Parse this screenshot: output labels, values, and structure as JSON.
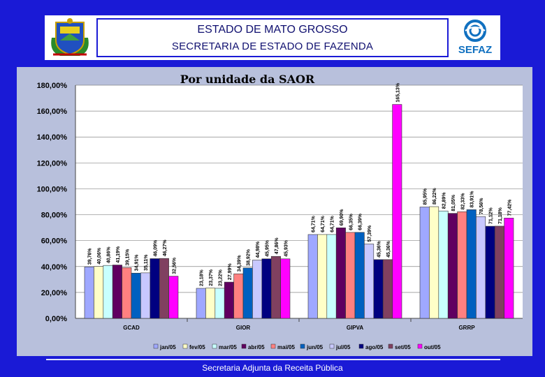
{
  "header": {
    "title_line1": "ESTADO DE MATO GROSSO",
    "title_line2": "SECRETARIA DE ESTADO DE FAZENDA",
    "logo_text": "SEFAZ"
  },
  "footer": {
    "text": "Secretaria Adjunta da Receita Pública"
  },
  "colors": {
    "background": "#1a1ad6",
    "plot_bg": "#b8c0dc"
  },
  "chart_data": {
    "type": "bar",
    "title": "Por unidade da SAOR",
    "xlabel": "",
    "ylabel": "",
    "ylim": [
      0,
      180
    ],
    "yticks": [
      "0,00%",
      "20,00%",
      "40,00%",
      "60,00%",
      "80,00%",
      "100,00%",
      "120,00%",
      "140,00%",
      "160,00%",
      "180,00%"
    ],
    "grid": true,
    "legend_position": "bottom",
    "categories": [
      "GCAD",
      "GIOR",
      "GIPVA",
      "GRRP"
    ],
    "series": [
      {
        "name": "jan/05",
        "color": "#9fa8ff",
        "values": [
          39.76,
          23.18,
          64.71,
          85.95
        ],
        "labels": [
          "39,76%",
          "23,18%",
          "64,71%",
          "85,95%"
        ]
      },
      {
        "name": "fev/05",
        "color": "#ffffc8",
        "values": [
          40.06,
          23.37,
          64.71,
          86.22
        ],
        "labels": [
          "40,06%",
          "23,37%",
          "64,71%",
          "86,22%"
        ]
      },
      {
        "name": "mar/05",
        "color": "#c8ffff",
        "values": [
          40.86,
          23.22,
          64.71,
          82.89
        ],
        "labels": [
          "40,86%",
          "23,22%",
          "64,71%",
          "82,89%"
        ]
      },
      {
        "name": "abr/05",
        "color": "#600060",
        "values": [
          41.19,
          27.99,
          69.9,
          81.05
        ],
        "labels": [
          "41,19%",
          "27,99%",
          "69,90%",
          "81,05%"
        ]
      },
      {
        "name": "mai/05",
        "color": "#ff8080",
        "values": [
          39.15,
          34.39,
          66.35,
          82.33
        ],
        "labels": [
          "39,15%",
          "34,39%",
          "66,35%",
          "82,33%"
        ]
      },
      {
        "name": "jun/05",
        "color": "#0060c0",
        "values": [
          34.91,
          38.92,
          66.39,
          83.91
        ],
        "labels": [
          "34,91%",
          "38,92%",
          "66,39%",
          "83,91%"
        ]
      },
      {
        "name": "jul/05",
        "color": "#c8c8ff",
        "values": [
          35.11,
          44.98,
          57.39,
          78.56
        ],
        "labels": [
          "35,11%",
          "44,98%",
          "57,39%",
          "78,56%"
        ]
      },
      {
        "name": "ago/05",
        "color": "#000080",
        "values": [
          46.09,
          45.95,
          45.36,
          71.12
        ],
        "labels": [
          "46,09%",
          "45,95%",
          "45,36%",
          "71,12%"
        ]
      },
      {
        "name": "set/05",
        "color": "#804060",
        "values": [
          46.27,
          47.86,
          45.36,
          71.18
        ],
        "labels": [
          "46,27%",
          "47,86%",
          "45,36%",
          "71,18%"
        ]
      },
      {
        "name": "out/05",
        "color": "#ff00ff",
        "values": [
          32.56,
          45.93,
          165.13,
          77.42
        ],
        "labels": [
          "32,56%",
          "45,93%",
          "165,13%",
          "77,42%"
        ]
      }
    ]
  }
}
